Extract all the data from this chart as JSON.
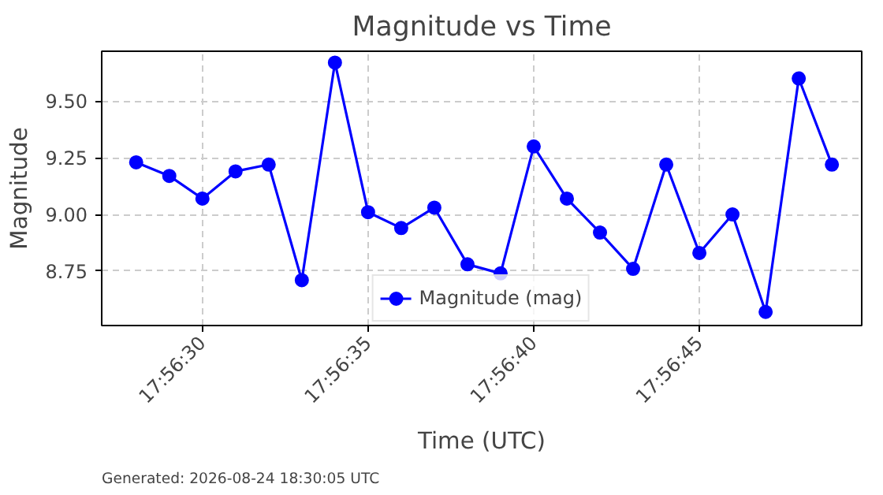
{
  "chart_data": {
    "type": "line",
    "title": "Magnitude vs Time",
    "xlabel": "Time (UTC)",
    "ylabel": "Magnitude",
    "x": [
      "2026-08-24T17:56:28",
      "2026-08-24T17:56:29",
      "2026-08-24T17:56:30",
      "2026-08-24T17:56:31",
      "2026-08-24T17:56:32",
      "2026-08-24T17:56:33",
      "2026-08-24T17:56:34",
      "2026-08-24T17:56:35",
      "2026-08-24T17:56:36",
      "2026-08-24T17:56:37",
      "2026-08-24T17:56:38",
      "2026-08-24T17:56:39",
      "2026-08-24T17:56:40",
      "2026-08-24T17:56:41",
      "2026-08-24T17:56:42",
      "2026-08-24T17:56:43",
      "2026-08-24T17:56:44",
      "2026-08-24T17:56:45",
      "2026-08-24T17:56:46",
      "2026-08-24T17:56:47",
      "2026-08-24T17:56:48",
      "2026-08-24T17:56:49"
    ],
    "series": [
      {
        "name": "Magnitude (mag)",
        "color": "#0000ff",
        "values": [
          9.23,
          9.17,
          9.07,
          9.19,
          9.22,
          8.71,
          9.67,
          9.01,
          8.94,
          9.03,
          8.78,
          8.74,
          9.3,
          9.07,
          8.92,
          8.76,
          9.22,
          8.83,
          9.0,
          8.57,
          9.6,
          9.22
        ]
      }
    ],
    "xlim": [
      "2026-08-24T17:56:26.96",
      "2026-08-24T17:56:49.9"
    ],
    "xticks": [
      {
        "value": "2026-08-24T17:56:30",
        "label": "17:56:30"
      },
      {
        "value": "2026-08-24T17:56:35",
        "label": "17:56:35"
      },
      {
        "value": "2026-08-24T17:56:40",
        "label": "17:56:40"
      },
      {
        "value": "2026-08-24T17:56:45",
        "label": "17:56:45"
      }
    ],
    "ylim": [
      8.51,
      9.72
    ],
    "yticks": [
      {
        "value": 8.75,
        "label": "8.75"
      },
      {
        "value": 9.0,
        "label": "9.00"
      },
      {
        "value": 9.25,
        "label": "9.25"
      },
      {
        "value": 9.5,
        "label": "9.50"
      }
    ],
    "grid": true,
    "legend": "bottom",
    "marker": "circle",
    "line_style": "solid",
    "annotations": [
      "Generated: 2026-08-24 18:30:05 UTC"
    ]
  }
}
